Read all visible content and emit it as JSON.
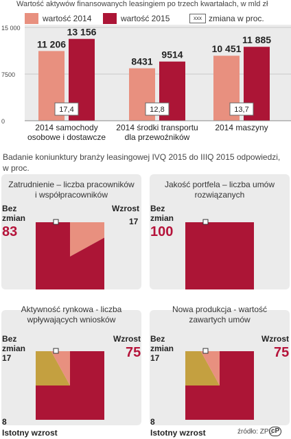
{
  "title": "Wartość aktywów finansowanych leasingiem po trzech kwartałach, w mld zł",
  "legend": {
    "item_2014": "wartość 2014",
    "item_2015": "wartość 2015",
    "change_box": "xxx",
    "change_label": "zmiana w proc."
  },
  "colors": {
    "v2014": "#e8907f",
    "v2015": "#ac1536",
    "bg": "#ebebeb",
    "gold": "#c4a040",
    "pink": "#e8907f"
  },
  "chart_data": [
    {
      "type": "bar",
      "categories": [
        "2014 samochody\nosobowe i dostawcze",
        "2014 środki transportu\ndla przewoźników",
        "2014 maszyny"
      ],
      "series": [
        {
          "name": "wartość 2014",
          "values": [
            11206,
            8431,
            10451
          ],
          "labels": [
            "11 206",
            "8431",
            "10 451"
          ]
        },
        {
          "name": "wartość 2015",
          "values": [
            13156,
            9514,
            11885
          ],
          "labels": [
            "13 156",
            "9514",
            "11 885"
          ]
        }
      ],
      "change": [
        "17,4",
        "12,8",
        "13,7"
      ],
      "yticks": [
        0,
        7500,
        15000
      ],
      "ytick_labels": [
        "0",
        "7500",
        "15 000"
      ],
      "ylim": [
        0,
        15000
      ]
    },
    {
      "type": "pie",
      "title": "Zatrudnienie – liczba pracowników\ni współpracowników",
      "slices": [
        {
          "name": "Bez zmian",
          "value": 83
        },
        {
          "name": "Wzrost",
          "value": 17
        }
      ]
    },
    {
      "type": "pie",
      "title": "Jakość portfela – liczba umów\nrozwiązanych",
      "slices": [
        {
          "name": "Bez zmian",
          "value": 100
        }
      ]
    },
    {
      "type": "pie",
      "title": "Aktywność rynkowa - liczba\nwpływających wniosków",
      "slices": [
        {
          "name": "Wzrost",
          "value": 75
        },
        {
          "name": "Bez zmian",
          "value": 17
        },
        {
          "name": "Istotny wzrost",
          "value": 8
        }
      ]
    },
    {
      "type": "pie",
      "title": "Nowa produkcja - wartość\nzawartych umów",
      "slices": [
        {
          "name": "Wzrost",
          "value": 75
        },
        {
          "name": "Bez zmian",
          "value": 17
        },
        {
          "name": "Istotny wzrost",
          "value": 8
        }
      ]
    }
  ],
  "survey_title": "Badanie koniunktury branży leasingowej IVQ 2015 do IIIQ 2015 odpowiedzi, w proc.",
  "labels": {
    "bez_zmian_1": "Bez\nzmian",
    "wzrost_1": "Wzrost",
    "bez_zmian_2": "Bez\nzmian",
    "wzrost_3": "Wzrost",
    "bez_zmian_3": "Bez\nzmian",
    "istotny_3": "Istotny wzrost",
    "wzrost_4": "Wzrost",
    "bez_zmian_4": "Bez\nzmian",
    "istotny_4": "Istotny wzrost"
  },
  "numbers": {
    "p1_bez": "83",
    "p1_wzrost": "17",
    "p2_bez": "100",
    "p3_wzrost": "75",
    "p3_bez": "17",
    "p3_ist": "8",
    "p4_wzrost": "75",
    "p4_bez": "17",
    "p4_ist": "8"
  },
  "source": "źródło: ZPL",
  "source_mark": "PAP"
}
